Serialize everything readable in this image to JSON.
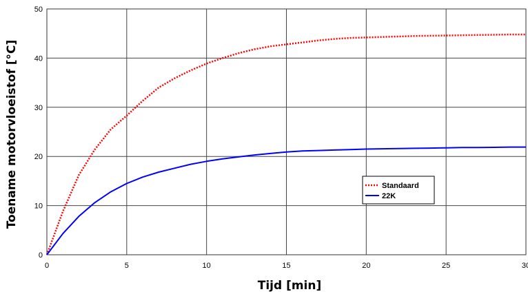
{
  "chart_data": {
    "type": "line",
    "xlabel": "Tijd  [min]",
    "ylabel": "Toename motorvloeistof  [°C]",
    "xlim": [
      0,
      30
    ],
    "ylim": [
      0,
      50
    ],
    "xticks": [
      "0",
      "5",
      "10",
      "15",
      "20",
      "25",
      "30"
    ],
    "yticks": [
      "0",
      "10",
      "20",
      "30",
      "40",
      "50"
    ],
    "grid": true,
    "legend_position": "center-right",
    "series": [
      {
        "name": "Standaard",
        "color": "#ff0000",
        "style": "dotted",
        "x": [
          0,
          1,
          2,
          3,
          4,
          5,
          6,
          7,
          8,
          9,
          10,
          11,
          12,
          13,
          14,
          15,
          16,
          17,
          18,
          19,
          20,
          21,
          22,
          23,
          24,
          25,
          26,
          27,
          28,
          29,
          30
        ],
        "values": [
          0,
          8.8,
          16.2,
          21.4,
          25.5,
          28.3,
          31.3,
          34.0,
          35.9,
          37.5,
          38.9,
          40.0,
          41.0,
          41.8,
          42.4,
          42.8,
          43.2,
          43.6,
          43.9,
          44.1,
          44.2,
          44.3,
          44.4,
          44.5,
          44.55,
          44.6,
          44.65,
          44.7,
          44.75,
          44.8,
          44.8
        ]
      },
      {
        "name": "22K",
        "color": "#0000ff",
        "style": "solid",
        "x": [
          0,
          1,
          2,
          3,
          4,
          5,
          6,
          7,
          8,
          9,
          10,
          11,
          12,
          13,
          14,
          15,
          16,
          17,
          18,
          19,
          20,
          21,
          22,
          23,
          24,
          25,
          26,
          27,
          28,
          29,
          30
        ],
        "values": [
          0,
          4.3,
          7.8,
          10.6,
          12.8,
          14.5,
          15.8,
          16.8,
          17.6,
          18.4,
          19.0,
          19.5,
          19.9,
          20.3,
          20.6,
          20.9,
          21.1,
          21.2,
          21.3,
          21.4,
          21.5,
          21.55,
          21.6,
          21.65,
          21.7,
          21.75,
          21.8,
          21.8,
          21.85,
          21.9,
          21.9
        ]
      }
    ]
  }
}
